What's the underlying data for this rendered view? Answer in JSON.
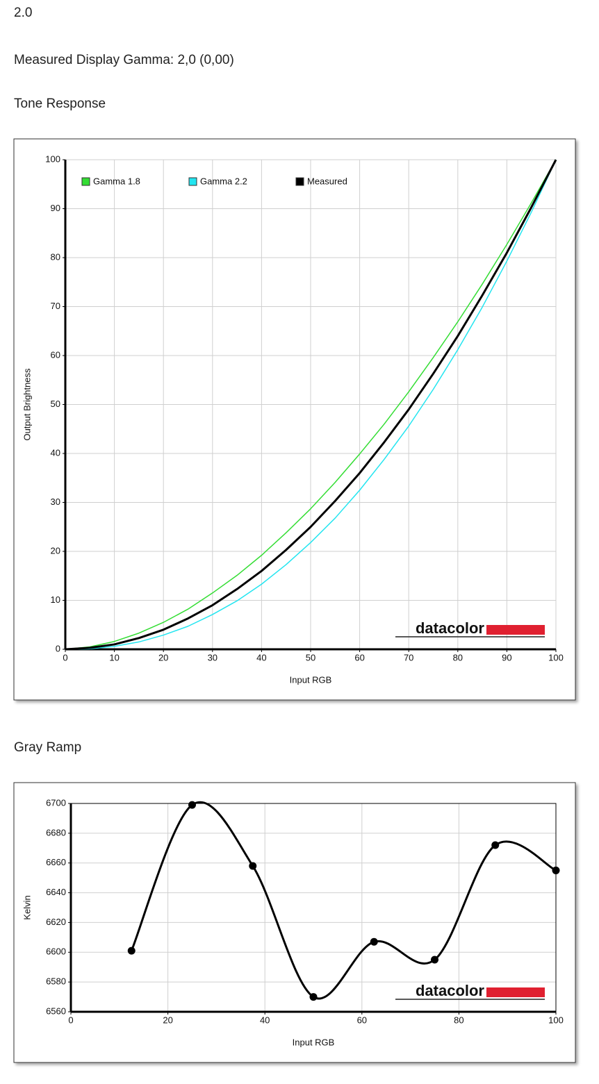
{
  "page": {
    "lines": [
      "2.0",
      "Measured Display Gamma: 2,0 (0,00)"
    ]
  },
  "chart_data": [
    {
      "type": "line",
      "title": "Tone Response",
      "xlabel": "Input RGB",
      "ylabel": "Output Brightness",
      "watermark": "datacolor",
      "x": [
        0,
        5,
        10,
        15,
        20,
        25,
        30,
        35,
        40,
        45,
        50,
        55,
        60,
        65,
        70,
        75,
        80,
        85,
        90,
        95,
        100
      ],
      "series": [
        {
          "name": "Gamma 1.8",
          "color": "#33dd33",
          "width": 1.5,
          "values": [
            0,
            0.5,
            1.6,
            3.3,
            5.5,
            8.2,
            11.5,
            15.1,
            19.2,
            23.8,
            28.7,
            34.1,
            39.9,
            46.0,
            52.6,
            59.6,
            66.9,
            74.6,
            82.7,
            91.2,
            100
          ]
        },
        {
          "name": "Gamma 2.2",
          "color": "#22e5f0",
          "width": 1.5,
          "values": [
            0,
            0.1,
            0.6,
            1.5,
            2.9,
            4.7,
            7.1,
            9.9,
            13.3,
            17.3,
            21.8,
            26.8,
            32.5,
            38.8,
            45.6,
            53.1,
            61.2,
            69.9,
            79.3,
            89.3,
            100
          ]
        },
        {
          "name": "Measured",
          "color": "#000000",
          "width": 3,
          "values": [
            0,
            0.3,
            1,
            2.3,
            4,
            6.3,
            9,
            12.3,
            16,
            20.3,
            25,
            30.3,
            36,
            42.3,
            49,
            56.3,
            64,
            72.3,
            81,
            90.3,
            100
          ]
        }
      ],
      "xlim": [
        0,
        100
      ],
      "xticks": [
        0,
        10,
        20,
        30,
        40,
        50,
        60,
        70,
        80,
        90,
        100
      ],
      "ylim": [
        0,
        100
      ],
      "yticks": [
        0,
        10,
        20,
        30,
        40,
        50,
        60,
        70,
        80,
        90,
        100
      ],
      "grid": true,
      "legend": "top-left"
    },
    {
      "type": "line",
      "title": "Gray Ramp",
      "xlabel": "Input RGB",
      "ylabel": "Kelvin",
      "watermark": "datacolor",
      "x": [
        12.5,
        25,
        37.5,
        50,
        62.5,
        75,
        87.5,
        100
      ],
      "values": [
        6601,
        6699,
        6658,
        6570,
        6607,
        6595,
        6672,
        6655
      ],
      "color": "#000000",
      "smooth": true,
      "markers": true,
      "xlim": [
        0,
        100
      ],
      "xticks": [
        0,
        20,
        40,
        60,
        80,
        100
      ],
      "ylim": [
        6560,
        6700
      ],
      "yticks": [
        6560,
        6580,
        6600,
        6620,
        6640,
        6660,
        6680,
        6700
      ],
      "grid": true
    }
  ]
}
